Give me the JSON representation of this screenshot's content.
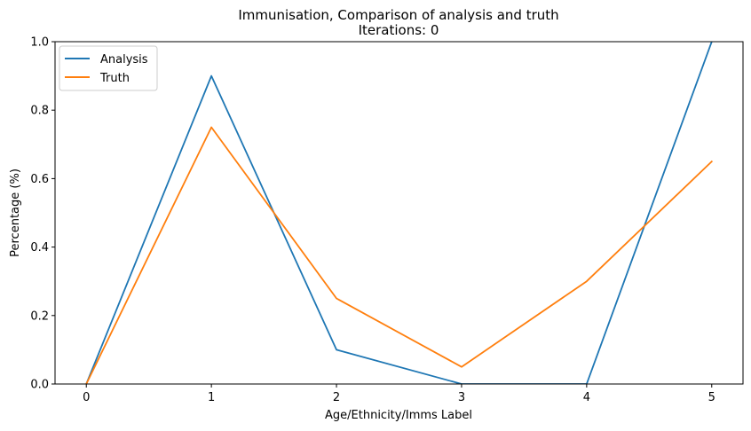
{
  "chart_data": {
    "type": "line",
    "title": "Immunisation, Comparison of analysis and truth",
    "subtitle": "Iterations: 0",
    "xlabel": "Age/Ethnicity/Imms Label",
    "ylabel": "Percentage (%)",
    "x": [
      0,
      1,
      2,
      3,
      4,
      5
    ],
    "xlim": [
      -0.25,
      5.25
    ],
    "ylim": [
      0,
      1.0
    ],
    "xticks": [
      "0",
      "1",
      "2",
      "3",
      "4",
      "5"
    ],
    "yticks": [
      "0.0",
      "0.2",
      "0.4",
      "0.6",
      "0.8",
      "1.0"
    ],
    "grid": false,
    "legend_position": "top-left",
    "series": [
      {
        "name": "Analysis",
        "color": "#1f77b4",
        "values": [
          0.0,
          0.9,
          0.1,
          0.0,
          0.0,
          1.0
        ]
      },
      {
        "name": "Truth",
        "color": "#ff7f0e",
        "values": [
          0.0,
          0.75,
          0.25,
          0.05,
          0.3,
          0.65
        ]
      }
    ]
  }
}
